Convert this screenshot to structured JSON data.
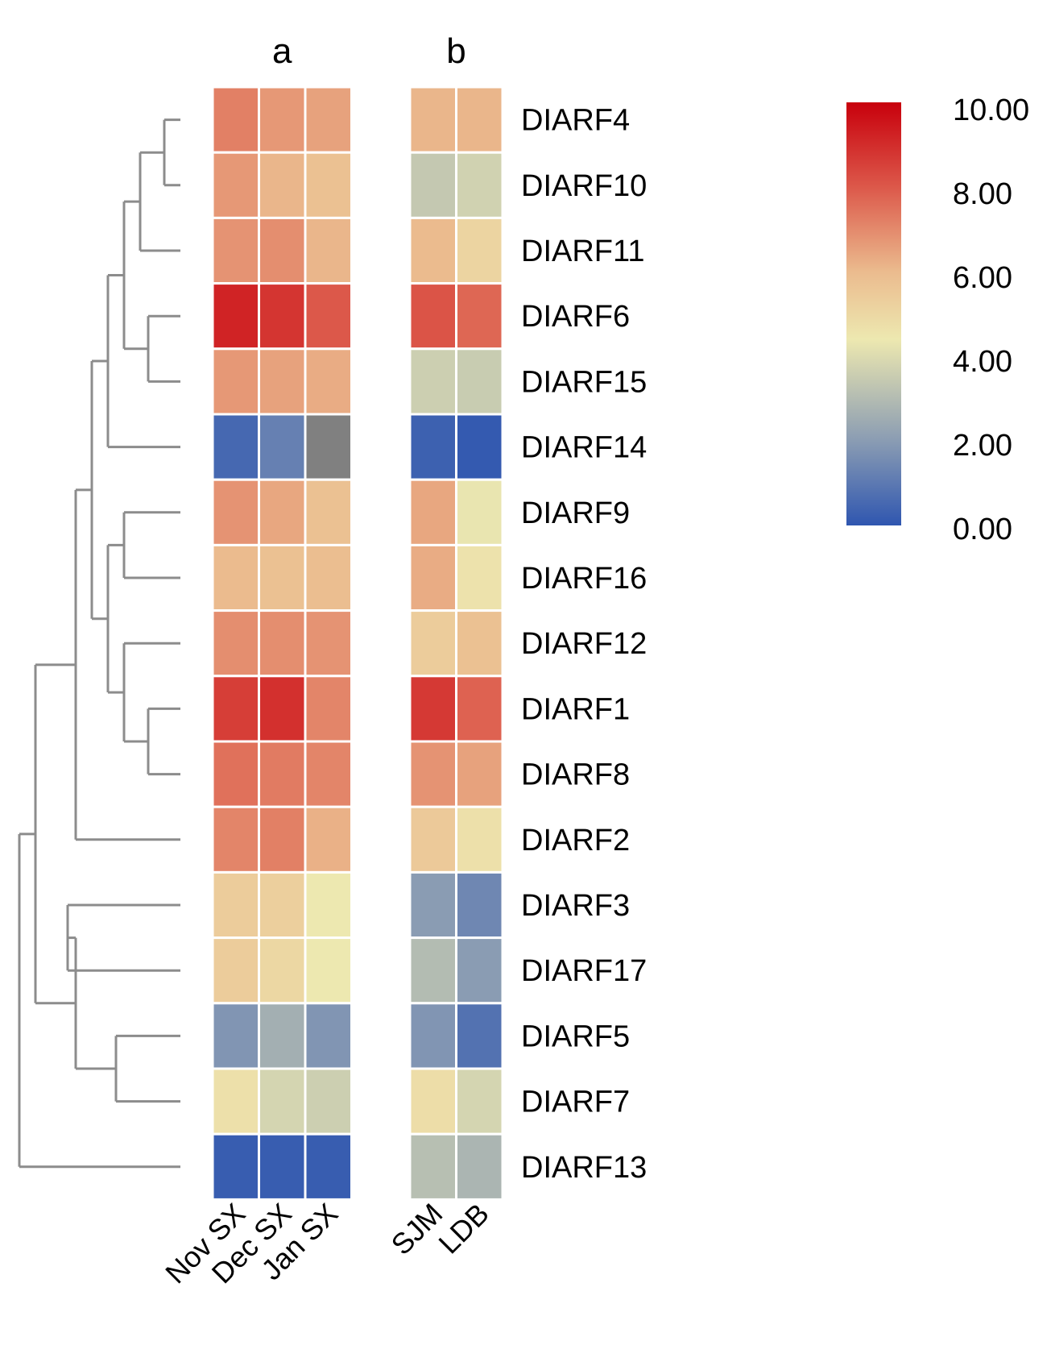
{
  "chart_data": {
    "type": "heatmap",
    "title": "",
    "group_labels": [
      "a",
      "b"
    ],
    "groups": [
      {
        "name": "a",
        "columns": [
          "Nov SX",
          "Dec SX",
          "Jan SX"
        ]
      },
      {
        "name": "b",
        "columns": [
          "SJM",
          "LDB"
        ]
      }
    ],
    "rows": [
      "DIARF4",
      "DIARF10",
      "DIARF11",
      "DIARF6",
      "DIARF15",
      "DIARF14",
      "DIARF9",
      "DIARF16",
      "DIARF12",
      "DIARF1",
      "DIARF8",
      "DIARF2",
      "DIARF3",
      "DIARF17",
      "DIARF5",
      "DIARF7",
      "DIARF13"
    ],
    "values_a": [
      [
        7.2,
        6.7,
        6.5
      ],
      [
        6.7,
        6.1,
        5.8
      ],
      [
        6.8,
        6.9,
        6.1
      ],
      [
        9.2,
        8.8,
        8.0
      ],
      [
        6.7,
        6.5,
        6.3
      ],
      [
        0.5,
        1.2,
        null
      ],
      [
        6.8,
        6.4,
        5.8
      ],
      [
        6.0,
        5.8,
        5.9
      ],
      [
        6.9,
        6.9,
        6.8
      ],
      [
        8.6,
        8.9,
        7.1
      ],
      [
        7.5,
        7.3,
        7.1
      ],
      [
        7.1,
        7.2,
        6.2
      ],
      [
        5.4,
        5.3,
        4.4
      ],
      [
        5.4,
        5.0,
        4.4
      ],
      [
        1.8,
        2.6,
        1.8
      ],
      [
        4.7,
        3.8,
        3.6
      ],
      [
        0.2,
        0.2,
        0.2
      ]
    ],
    "values_b": [
      [
        6.1,
        6.1
      ],
      [
        3.4,
        3.7
      ],
      [
        6.0,
        5.1
      ],
      [
        8.1,
        7.7
      ],
      [
        3.6,
        3.5
      ],
      [
        0.3,
        0.1
      ],
      [
        6.4,
        4.3
      ],
      [
        6.3,
        4.6
      ],
      [
        5.4,
        5.8
      ],
      [
        8.7,
        7.8
      ],
      [
        6.8,
        6.5
      ],
      [
        5.5,
        4.7
      ],
      [
        2.0,
        1.4
      ],
      [
        3.0,
        2.0
      ],
      [
        1.8,
        0.8
      ],
      [
        4.8,
        3.8
      ],
      [
        3.1,
        2.8
      ]
    ],
    "missing_color": "#808080",
    "color_scale": {
      "min": 0,
      "max": 10,
      "stops": [
        {
          "value": 0,
          "color": "#2f56b0"
        },
        {
          "value": 2,
          "color": "#8a9cb3"
        },
        {
          "value": 4.4,
          "color": "#ede8b0"
        },
        {
          "value": 6,
          "color": "#ebbb8e"
        },
        {
          "value": 8,
          "color": "#dc584a"
        },
        {
          "value": 10,
          "color": "#c8000c"
        }
      ],
      "tick_labels": [
        "10.00",
        "8.00",
        "6.00",
        "4.00",
        "2.00",
        "0.00"
      ]
    },
    "dendrogram_color": "#8c8c8c",
    "dendrogram": {
      "merges": [
        {
          "a": 0,
          "b": 1,
          "height": 0.02
        },
        {
          "a": 3,
          "b": 4,
          "height": 0.04
        },
        {
          "a": 9,
          "b": 10,
          "height": 0.04
        },
        {
          "a": 15,
          "b": 14,
          "height": 0.08
        },
        {
          "a": "c0",
          "b": 2,
          "height": 0.05
        },
        {
          "a": "c4",
          "b": "c1",
          "height": 0.07
        },
        {
          "a": 6,
          "b": 7,
          "height": 0.07
        },
        {
          "a": 8,
          "b": "c2",
          "height": 0.07
        },
        {
          "a": "c5",
          "b": 5,
          "height": 0.09
        },
        {
          "a": "c6",
          "b": "c7",
          "height": 0.09
        },
        {
          "a": 12,
          "b": 13,
          "height": 0.14
        },
        {
          "a": "c10",
          "b": "c3",
          "height": 0.13
        },
        {
          "a": "c8",
          "b": "c9",
          "height": 0.11
        },
        {
          "a": "c12",
          "b": 11,
          "height": 0.13
        },
        {
          "a": "c13",
          "b": "c11",
          "height": 0.18
        },
        {
          "a": "c14",
          "b": 16,
          "height": 0.2
        }
      ]
    }
  }
}
